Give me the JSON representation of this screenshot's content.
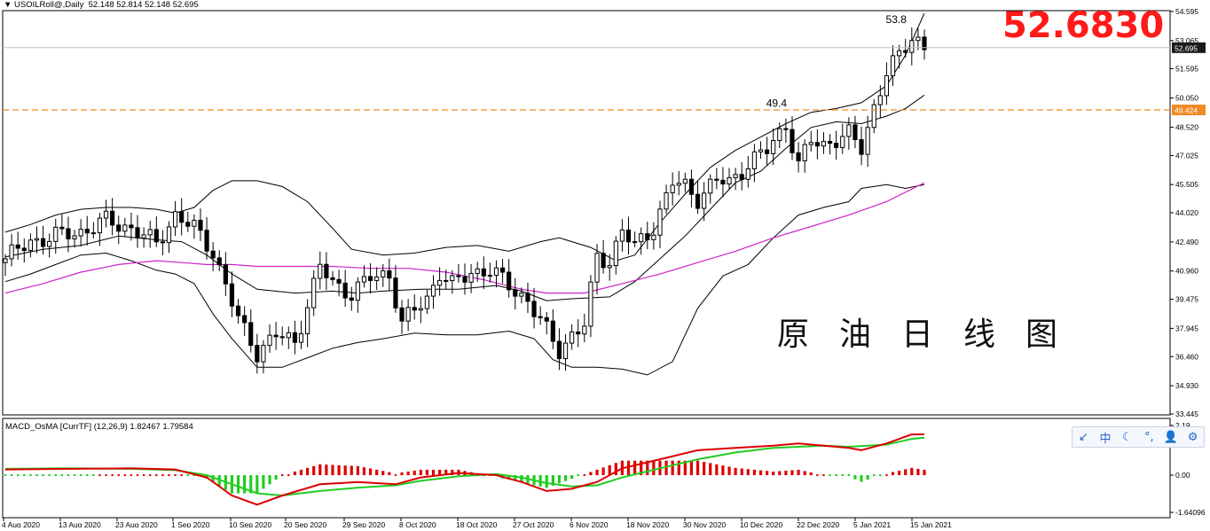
{
  "header": {
    "symbol": "USOILRoll@,Daily",
    "ohlc": "52.148 52.814 52.148 52.695"
  },
  "overlay": {
    "big_price": "52.6830",
    "caption": "原油日线图",
    "colors": {
      "big_price": "#ff1a1a",
      "caption": "#111111"
    }
  },
  "macd": {
    "title": "MACD_OsMA [CurrTF] (12,26,9) 1.82467 1.79584"
  },
  "toolbar": {
    "items": [
      {
        "icon": "arrow-box-icon",
        "glyph": "↙"
      },
      {
        "icon": "chinese-input-icon",
        "glyph": "中"
      },
      {
        "icon": "moon-icon",
        "glyph": "☾"
      },
      {
        "icon": "punctuation-icon",
        "glyph": "°,"
      },
      {
        "icon": "user-icon",
        "glyph": "👤"
      },
      {
        "icon": "gear-icon",
        "glyph": "⚙"
      }
    ]
  },
  "chart_data": {
    "type": "candlestick",
    "price_axis": {
      "ticks": [
        "54.595",
        "53.065",
        "51.595",
        "50.050",
        "48.520",
        "47.025",
        "45.505",
        "44.020",
        "42.490",
        "40.960",
        "39.475",
        "37.945",
        "36.460",
        "34.930",
        "33.445"
      ],
      "range": [
        33.445,
        54.595
      ],
      "current_price": "52.695",
      "reference_price": "49.424"
    },
    "macd_axis": {
      "ticks": [
        "2.19",
        "0.00",
        "-1.64096"
      ],
      "range": [
        -1.64096,
        2.19
      ]
    },
    "x_labels": [
      "4 Aug 2020",
      "13 Aug 2020",
      "23 Aug 2020",
      "1 Sep 2020",
      "10 Sep 2020",
      "20 Sep 2020",
      "29 Sep 2020",
      "8 Oct 2020",
      "18 Oct 2020",
      "27 Oct 2020",
      "6 Nov 2020",
      "18 Nov 2020",
      "30 Nov 2020",
      "10 Dec 2020",
      "22 Dec 2020",
      "5 Jan 2021",
      "15 Jan 2021"
    ],
    "annotations": [
      {
        "text": "49.4",
        "value": 49.4
      },
      {
        "text": "53.8",
        "value": 53.8
      }
    ],
    "series_style": {
      "bollinger": "#000000",
      "ma": "#cc22cc",
      "reference_line": "#f08a24",
      "macd_line": "#dd0000",
      "signal_line": "#22cc22",
      "hist_up": "#dd0000",
      "hist_down": "#22cc22"
    },
    "close_path": [
      [
        0,
        41.6
      ],
      [
        4,
        42.5
      ],
      [
        8,
        42.8
      ],
      [
        12,
        43.0
      ],
      [
        16,
        43.6
      ],
      [
        20,
        43.2
      ],
      [
        24,
        42.4
      ],
      [
        27,
        43.9
      ],
      [
        30,
        43.2
      ],
      [
        33,
        42.0
      ],
      [
        37,
        38.4
      ],
      [
        40,
        36.7
      ],
      [
        43,
        37.6
      ],
      [
        46,
        37.2
      ],
      [
        48,
        39.2
      ],
      [
        50,
        41.2
      ],
      [
        52,
        40.3
      ],
      [
        55,
        39.8
      ],
      [
        58,
        40.6
      ],
      [
        61,
        40.8
      ],
      [
        63,
        38.2
      ],
      [
        65,
        38.9
      ],
      [
        67,
        39.5
      ],
      [
        69,
        40.9
      ],
      [
        71,
        40.2
      ],
      [
        74,
        40.9
      ],
      [
        77,
        41.0
      ],
      [
        80,
        40.2
      ],
      [
        83,
        39.4
      ],
      [
        86,
        37.8
      ],
      [
        88,
        36.8
      ],
      [
        90,
        37.6
      ],
      [
        92,
        38.1
      ],
      [
        94,
        41.7
      ],
      [
        96,
        41.5
      ],
      [
        98,
        43.1
      ],
      [
        100,
        42.2
      ],
      [
        103,
        43.3
      ],
      [
        106,
        45.6
      ],
      [
        108,
        45.4
      ],
      [
        110,
        44.8
      ],
      [
        113,
        45.7
      ],
      [
        115,
        45.6
      ],
      [
        118,
        46.6
      ],
      [
        121,
        47.3
      ],
      [
        124,
        48.7
      ],
      [
        126,
        46.5
      ],
      [
        128,
        47.8
      ],
      [
        130,
        47.6
      ],
      [
        132,
        47.9
      ],
      [
        134,
        48.1
      ],
      [
        136,
        47.4
      ],
      [
        138,
        49.6
      ],
      [
        140,
        51.4
      ],
      [
        142,
        52.2
      ],
      [
        144,
        53.3
      ],
      [
        145,
        53.1
      ],
      [
        146,
        52.7
      ]
    ],
    "bb_upper": [
      [
        0,
        43.0
      ],
      [
        4,
        43.4
      ],
      [
        8,
        43.9
      ],
      [
        12,
        44.2
      ],
      [
        16,
        44.3
      ],
      [
        20,
        44.3
      ],
      [
        24,
        44.2
      ],
      [
        27,
        44.0
      ],
      [
        30,
        44.3
      ],
      [
        33,
        45.2
      ],
      [
        36,
        45.7
      ],
      [
        40,
        45.7
      ],
      [
        44,
        45.4
      ],
      [
        48,
        44.6
      ],
      [
        52,
        43.2
      ],
      [
        55,
        42.1
      ],
      [
        60,
        41.8
      ],
      [
        65,
        41.9
      ],
      [
        70,
        42.2
      ],
      [
        75,
        42.3
      ],
      [
        80,
        42.0
      ],
      [
        85,
        42.5
      ],
      [
        88,
        42.7
      ],
      [
        93,
        42.2
      ],
      [
        97,
        41.5
      ],
      [
        100,
        41.8
      ],
      [
        104,
        43.5
      ],
      [
        108,
        45.0
      ],
      [
        112,
        46.4
      ],
      [
        116,
        47.3
      ],
      [
        120,
        48.0
      ],
      [
        124,
        48.7
      ],
      [
        128,
        49.3
      ],
      [
        132,
        49.5
      ],
      [
        136,
        49.8
      ],
      [
        140,
        50.7
      ],
      [
        143,
        52.3
      ],
      [
        146,
        54.5
      ]
    ],
    "bb_lower": [
      [
        0,
        40.4
      ],
      [
        4,
        40.8
      ],
      [
        8,
        41.3
      ],
      [
        12,
        41.8
      ],
      [
        16,
        41.9
      ],
      [
        20,
        41.5
      ],
      [
        24,
        41.0
      ],
      [
        27,
        40.8
      ],
      [
        30,
        40.3
      ],
      [
        33,
        38.7
      ],
      [
        36,
        37.4
      ],
      [
        40,
        35.9
      ],
      [
        44,
        35.9
      ],
      [
        48,
        36.4
      ],
      [
        52,
        36.9
      ],
      [
        56,
        37.2
      ],
      [
        60,
        37.4
      ],
      [
        65,
        37.7
      ],
      [
        70,
        37.6
      ],
      [
        75,
        37.6
      ],
      [
        80,
        37.8
      ],
      [
        84,
        37.4
      ],
      [
        87,
        36.3
      ],
      [
        90,
        35.9
      ],
      [
        94,
        35.9
      ],
      [
        98,
        35.8
      ],
      [
        102,
        35.5
      ],
      [
        106,
        36.2
      ],
      [
        110,
        39.0
      ],
      [
        114,
        40.7
      ],
      [
        118,
        41.3
      ],
      [
        122,
        42.7
      ],
      [
        126,
        43.9
      ],
      [
        130,
        44.3
      ],
      [
        134,
        44.6
      ],
      [
        136,
        45.3
      ],
      [
        140,
        45.5
      ],
      [
        143,
        45.3
      ],
      [
        146,
        45.5
      ]
    ],
    "bb_mid": [
      [
        0,
        41.7
      ],
      [
        6,
        42.1
      ],
      [
        12,
        42.3
      ],
      [
        18,
        42.8
      ],
      [
        24,
        42.6
      ],
      [
        28,
        42.5
      ],
      [
        32,
        41.8
      ],
      [
        36,
        40.8
      ],
      [
        40,
        40.0
      ],
      [
        46,
        39.8
      ],
      [
        52,
        39.9
      ],
      [
        56,
        39.8
      ],
      [
        60,
        39.9
      ],
      [
        66,
        40.0
      ],
      [
        72,
        40.0
      ],
      [
        78,
        40.2
      ],
      [
        82,
        39.9
      ],
      [
        86,
        39.4
      ],
      [
        90,
        39.5
      ],
      [
        96,
        39.6
      ],
      [
        100,
        40.4
      ],
      [
        104,
        41.6
      ],
      [
        108,
        42.8
      ],
      [
        112,
        44.2
      ],
      [
        116,
        45.6
      ],
      [
        120,
        46.2
      ],
      [
        124,
        47.4
      ],
      [
        128,
        48.5
      ],
      [
        132,
        48.8
      ],
      [
        136,
        48.7
      ],
      [
        140,
        49.1
      ],
      [
        143,
        49.5
      ],
      [
        146,
        50.2
      ]
    ],
    "ma": [
      [
        0,
        39.8
      ],
      [
        6,
        40.3
      ],
      [
        12,
        40.9
      ],
      [
        18,
        41.3
      ],
      [
        24,
        41.5
      ],
      [
        28,
        41.4
      ],
      [
        32,
        41.3
      ],
      [
        36,
        41.3
      ],
      [
        40,
        41.2
      ],
      [
        46,
        41.2
      ],
      [
        52,
        41.2
      ],
      [
        58,
        41.1
      ],
      [
        64,
        41.1
      ],
      [
        70,
        40.9
      ],
      [
        76,
        40.5
      ],
      [
        82,
        40.0
      ],
      [
        86,
        39.8
      ],
      [
        92,
        39.8
      ],
      [
        98,
        40.3
      ],
      [
        104,
        40.8
      ],
      [
        110,
        41.4
      ],
      [
        116,
        42.0
      ],
      [
        122,
        42.7
      ],
      [
        128,
        43.3
      ],
      [
        134,
        43.9
      ],
      [
        140,
        44.6
      ],
      [
        146,
        45.6
      ]
    ],
    "macd_line": [
      [
        0,
        0.25
      ],
      [
        10,
        0.28
      ],
      [
        20,
        0.3
      ],
      [
        27,
        0.25
      ],
      [
        32,
        -0.1
      ],
      [
        36,
        -0.9
      ],
      [
        40,
        -1.3
      ],
      [
        44,
        -0.9
      ],
      [
        50,
        -0.4
      ],
      [
        56,
        -0.3
      ],
      [
        62,
        -0.4
      ],
      [
        66,
        -0.1
      ],
      [
        72,
        0.1
      ],
      [
        78,
        0.0
      ],
      [
        82,
        -0.3
      ],
      [
        86,
        -0.7
      ],
      [
        90,
        -0.6
      ],
      [
        94,
        -0.3
      ],
      [
        98,
        0.3
      ],
      [
        104,
        0.7
      ],
      [
        110,
        1.1
      ],
      [
        116,
        1.2
      ],
      [
        122,
        1.3
      ],
      [
        126,
        1.4
      ],
      [
        130,
        1.3
      ],
      [
        134,
        1.2
      ],
      [
        136,
        1.1
      ],
      [
        140,
        1.4
      ],
      [
        144,
        1.8
      ],
      [
        146,
        1.8
      ]
    ],
    "signal_line": [
      [
        0,
        0.28
      ],
      [
        10,
        0.3
      ],
      [
        20,
        0.28
      ],
      [
        27,
        0.22
      ],
      [
        32,
        0.0
      ],
      [
        36,
        -0.4
      ],
      [
        40,
        -0.8
      ],
      [
        44,
        -0.9
      ],
      [
        50,
        -0.7
      ],
      [
        56,
        -0.55
      ],
      [
        62,
        -0.45
      ],
      [
        66,
        -0.25
      ],
      [
        72,
        -0.05
      ],
      [
        78,
        0.05
      ],
      [
        82,
        -0.1
      ],
      [
        86,
        -0.35
      ],
      [
        90,
        -0.5
      ],
      [
        94,
        -0.45
      ],
      [
        98,
        -0.1
      ],
      [
        104,
        0.3
      ],
      [
        110,
        0.7
      ],
      [
        116,
        1.0
      ],
      [
        122,
        1.2
      ],
      [
        126,
        1.25
      ],
      [
        130,
        1.3
      ],
      [
        134,
        1.25
      ],
      [
        140,
        1.35
      ],
      [
        144,
        1.6
      ],
      [
        146,
        1.65
      ]
    ]
  }
}
